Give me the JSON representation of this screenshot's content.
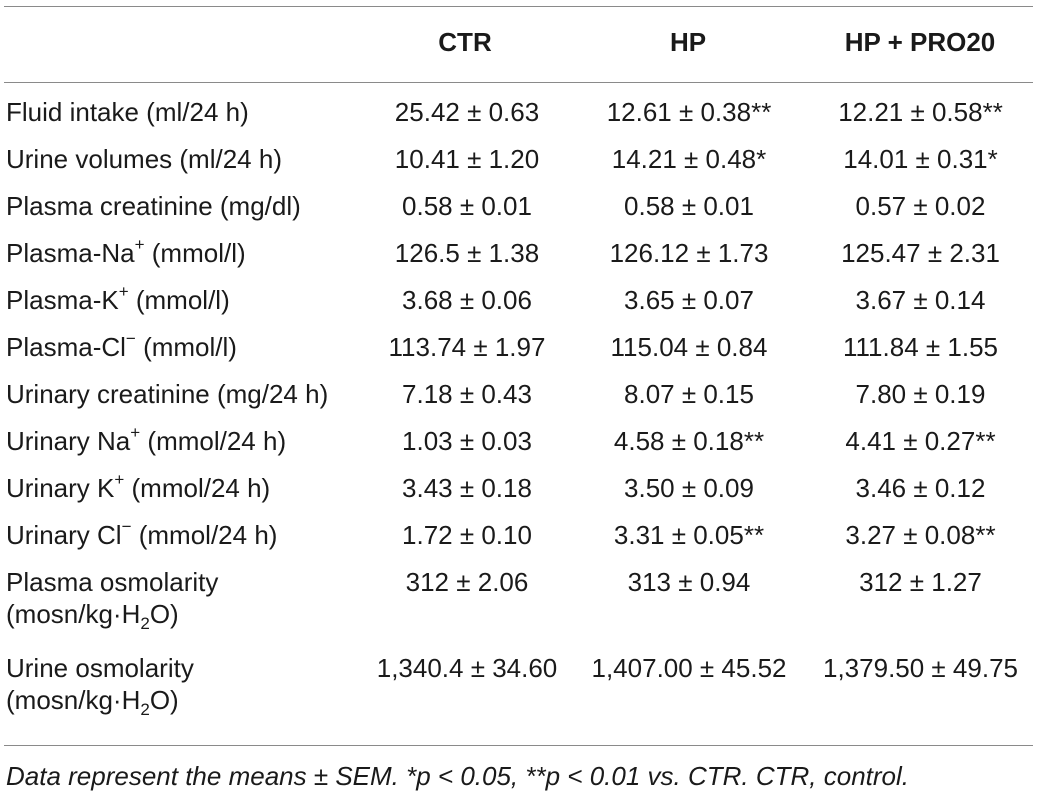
{
  "columns": [
    "CTR",
    "HP",
    "HP + PRO20"
  ],
  "rows": [
    {
      "label": "Fluid intake (ml/24 h)",
      "values": [
        "25.42 ± 0.63",
        "12.61 ± 0.38**",
        "12.21 ± 0.58**"
      ]
    },
    {
      "label": "Urine volumes (ml/24 h)",
      "values": [
        "10.41 ± 1.20",
        "14.21 ± 0.48*",
        "14.01 ± 0.31*"
      ]
    },
    {
      "label": "Plasma creatinine (mg/dl)",
      "values": [
        "0.58 ± 0.01",
        "0.58 ± 0.01",
        "0.57 ± 0.02"
      ]
    },
    {
      "label_pre": "Plasma-Na",
      "label_sup": "+",
      "label_post": " (mmol/l)",
      "values": [
        "126.5 ± 1.38",
        "126.12 ± 1.73",
        "125.47 ± 2.31"
      ]
    },
    {
      "label_pre": "Plasma-K",
      "label_sup": "+",
      "label_post": " (mmol/l)",
      "values": [
        "3.68 ± 0.06",
        "3.65 ± 0.07",
        "3.67 ± 0.14"
      ]
    },
    {
      "label_pre": "Plasma-Cl",
      "label_sup": "−",
      "label_post": " (mmol/l)",
      "values": [
        "113.74 ± 1.97",
        "115.04 ± 0.84",
        "111.84 ± 1.55"
      ]
    },
    {
      "label": "Urinary creatinine (mg/24 h)",
      "values": [
        "7.18 ± 0.43",
        "8.07 ± 0.15",
        "7.80 ± 0.19"
      ]
    },
    {
      "label_pre": "Urinary Na",
      "label_sup": "+",
      "label_post": " (mmol/24 h)",
      "values": [
        "1.03 ± 0.03",
        "4.58 ± 0.18**",
        "4.41 ± 0.27**"
      ]
    },
    {
      "label_pre": "Urinary K",
      "label_sup": "+",
      "label_post": " (mmol/24 h)",
      "values": [
        "3.43 ± 0.18",
        "3.50 ± 0.09",
        "3.46 ± 0.12"
      ]
    },
    {
      "label_pre": "Urinary Cl",
      "label_sup": "−",
      "label_post": " (mmol/24 h)",
      "values": [
        "1.72 ± 0.10",
        "3.31 ± 0.05**",
        "3.27 ± 0.08**"
      ]
    },
    {
      "label_line1": "Plasma osmolarity",
      "label_line2_pre": "(mosn/kg·H",
      "label_line2_sub": "2",
      "label_line2_post": "O)",
      "values": [
        "312 ± 2.06",
        "313 ± 0.94",
        "312 ± 1.27"
      ]
    },
    {
      "label_line1": "Urine osmolarity",
      "label_line2_pre": "(mosn/kg·H",
      "label_line2_sub": "2",
      "label_line2_post": "O)",
      "values": [
        "1,340.4 ± 34.60",
        "1,407.00 ± 45.52",
        "1,379.50 ± 49.75"
      ]
    }
  ],
  "footnote": "Data represent the means ± SEM. *p < 0.05, **p < 0.01 vs. CTR. CTR, control."
}
